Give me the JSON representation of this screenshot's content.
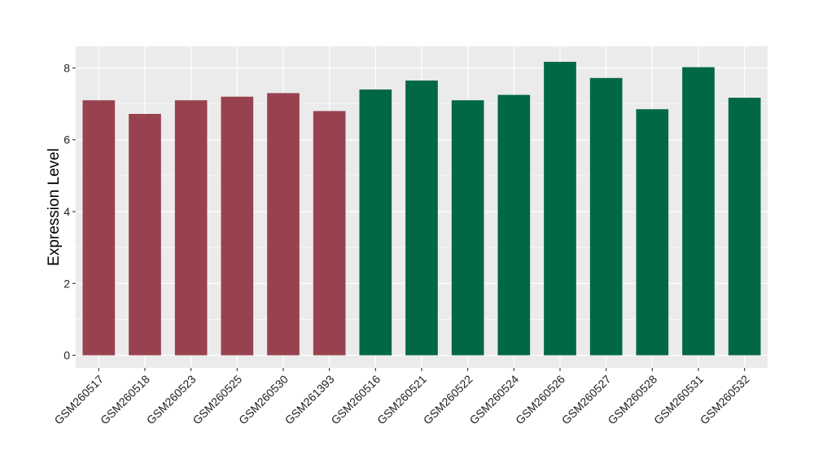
{
  "chart_data": {
    "type": "bar",
    "title": "",
    "xlabel": "",
    "ylabel": "Expression Level",
    "ylim": [
      -0.35,
      8.6
    ],
    "yticks": [
      0,
      2,
      4,
      6,
      8
    ],
    "grid": true,
    "legend": "none",
    "categories": [
      "GSM260517",
      "GSM260518",
      "GSM260523",
      "GSM260525",
      "GSM260530",
      "GSM261393",
      "GSM260516",
      "GSM260521",
      "GSM260522",
      "GSM260524",
      "GSM260526",
      "GSM260527",
      "GSM260528",
      "GSM260531",
      "GSM260532"
    ],
    "values": [
      7.1,
      6.72,
      7.1,
      7.2,
      7.3,
      6.8,
      7.4,
      7.65,
      7.1,
      7.25,
      8.17,
      7.72,
      6.85,
      8.02,
      7.17
    ],
    "group_of_bar": [
      0,
      0,
      0,
      0,
      0,
      0,
      1,
      1,
      1,
      1,
      1,
      1,
      1,
      1,
      1
    ],
    "group_colors": [
      "#99424f",
      "#006845"
    ],
    "panel_background": "#ebebeb",
    "grid_color": "#ffffff"
  }
}
